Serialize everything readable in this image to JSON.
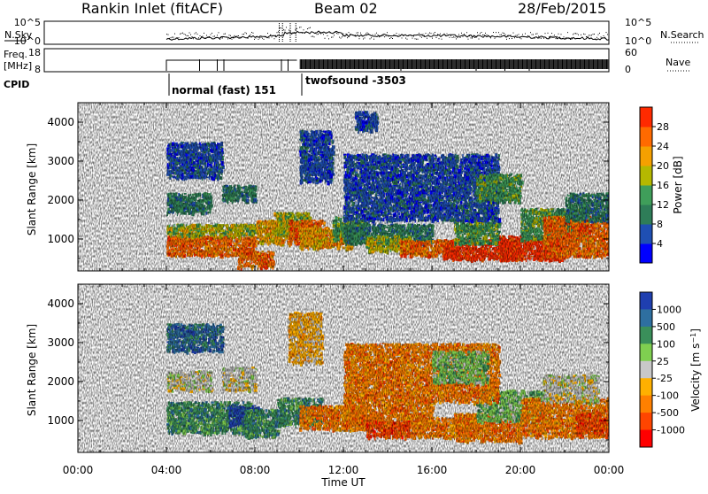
{
  "header": {
    "title": "Rankin Inlet (fitACF)",
    "beam": "Beam 02",
    "date": "28/Feb/2015"
  },
  "strip1": {
    "left_label": "N.Sky",
    "left_ticks": [
      "10^5",
      "10^0"
    ],
    "right_ticks": [
      "10^5",
      "10^0"
    ],
    "right_label": "N.Search"
  },
  "strip2": {
    "left_label_1": "Freq.",
    "left_label_2": "[MHz]",
    "left_ticks": [
      "18",
      "8"
    ],
    "right_ticks": [
      "60",
      "0"
    ],
    "right_label": "Nave"
  },
  "cpid": {
    "label": "CPID",
    "modes": [
      {
        "name": "normal (fast) 151",
        "start_h": 4.0
      },
      {
        "name": "twofsound -3503",
        "start_h": 10.0
      }
    ]
  },
  "chart_data": [
    {
      "type": "heatmap",
      "title": "",
      "xlabel": "Time UT",
      "ylabel": "Slant Range [km]",
      "x_tick_labels": [
        "00:00",
        "04:00",
        "08:00",
        "12:00",
        "16:00",
        "20:00",
        "00:00"
      ],
      "xlim_hours": [
        0,
        24
      ],
      "y_ticks": [
        1000,
        2000,
        3000,
        4000
      ],
      "ylim": [
        180,
        4500
      ],
      "colorbar": {
        "label": "Power [dB]",
        "tick_labels": [
          "4",
          "8",
          "12",
          "16",
          "20",
          "24",
          "28"
        ],
        "range": [
          0,
          30
        ],
        "colors": [
          "#0000ff",
          "#1f4fb3",
          "#2e7d58",
          "#3f9e5a",
          "#b5b800",
          "#f5a000",
          "#ff6a00",
          "#ff2a00"
        ]
      },
      "data_coverage_hours": [
        4.0,
        24.0
      ]
    },
    {
      "type": "heatmap",
      "title": "",
      "xlabel": "Time UT",
      "ylabel": "Slant Range [km]",
      "x_tick_labels": [
        "00:00",
        "04:00",
        "08:00",
        "12:00",
        "16:00",
        "20:00",
        "00:00"
      ],
      "xlim_hours": [
        0,
        24
      ],
      "y_ticks": [
        1000,
        2000,
        3000,
        4000
      ],
      "ylim": [
        180,
        4500
      ],
      "colorbar": {
        "label": "Velocity [m s^-1]",
        "tick_labels": [
          "1000",
          "500",
          "100",
          "25",
          "-25",
          "-100",
          "-500",
          "-1000"
        ],
        "colors": [
          "#1f3fb0",
          "#2e6fa0",
          "#3a8f5a",
          "#7fcf50",
          "#c8c8c8",
          "#ffb000",
          "#ff8000",
          "#ff4500",
          "#ff0000"
        ]
      },
      "data_coverage_hours": [
        4.0,
        24.0
      ]
    }
  ]
}
